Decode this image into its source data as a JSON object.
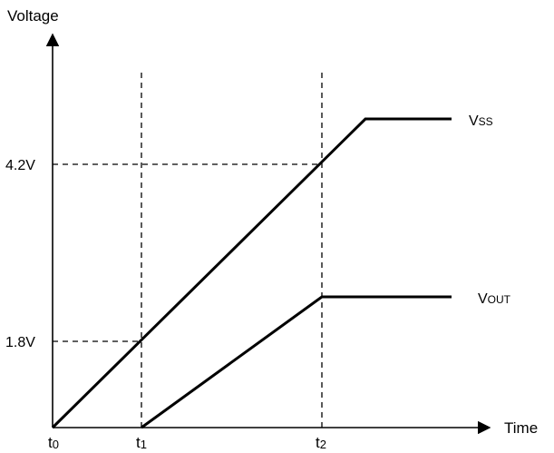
{
  "axes": {
    "y_title": "Voltage",
    "x_title": "Time"
  },
  "y_levels": [
    {
      "label": "1.8V",
      "value": 1.8
    },
    {
      "label": "4.2V",
      "value": 4.2
    }
  ],
  "x_marks": [
    {
      "main": "t",
      "sub": "0"
    },
    {
      "main": "t",
      "sub": "1"
    },
    {
      "main": "t",
      "sub": "2"
    }
  ],
  "signals": [
    {
      "name": "VSS",
      "main": "V",
      "sub": "SS"
    },
    {
      "name": "VOUT",
      "main": "V",
      "sub": "OUT"
    }
  ]
}
